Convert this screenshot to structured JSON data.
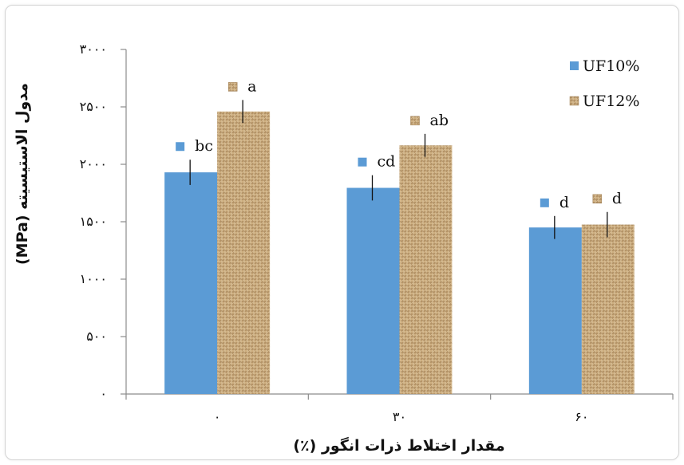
{
  "chart_data": {
    "type": "bar",
    "title": "",
    "xlabel": "مقدار اختلاط ذرات انگور (٪)",
    "ylabel": "مدول الاستیسیته (MPa)",
    "categories": [
      "۰",
      "۳۰",
      "۶۰"
    ],
    "ylim": [
      0,
      3000
    ],
    "yticks": [
      0,
      500,
      1000,
      1500,
      2000,
      2500,
      3000
    ],
    "ytick_labels": [
      "۰",
      "۵۰۰",
      "۱۰۰۰",
      "۱۵۰۰",
      "۲۰۰۰",
      "۲۵۰۰",
      "۳۰۰۰"
    ],
    "grid": false,
    "legend_position": "top-right",
    "series": [
      {
        "name": "UF10%",
        "values": [
          1930,
          1795,
          1450
        ],
        "errors": [
          110,
          110,
          100
        ],
        "labels": [
          "bc",
          "cd",
          "d"
        ],
        "color": "#5b9bd5",
        "pattern": "solid"
      },
      {
        "name": "UF12%",
        "values": [
          2460,
          2165,
          1475
        ],
        "errors": [
          100,
          100,
          110
        ],
        "labels": [
          "a",
          "ab",
          "d"
        ],
        "color": "#c8a97a",
        "pattern": "burlap"
      }
    ]
  }
}
